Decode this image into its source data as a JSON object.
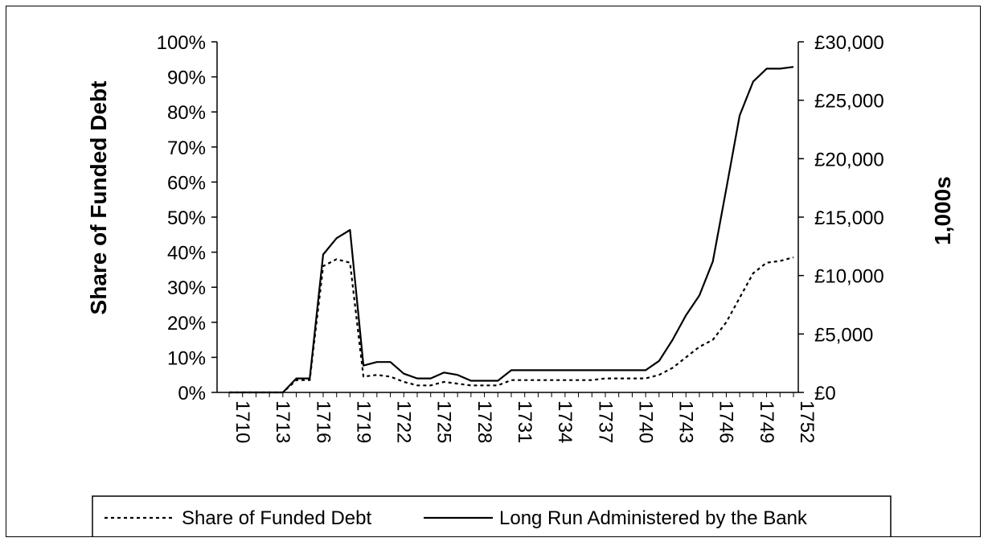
{
  "chart_data": {
    "type": "line",
    "title": "",
    "ylabel_left": "Share of Funded Debt",
    "ylabel_right": "1,000s",
    "xlabel": "",
    "x_tick_labels": [
      "1710",
      "1713",
      "1716",
      "1719",
      "1722",
      "1725",
      "1728",
      "1731",
      "1734",
      "1737",
      "1740",
      "1743",
      "1746",
      "1749",
      "1752"
    ],
    "y_left_tick_labels": [
      "0%",
      "10%",
      "20%",
      "30%",
      "40%",
      "50%",
      "60%",
      "70%",
      "80%",
      "90%",
      "100%"
    ],
    "y_right_tick_labels": [
      "£0",
      "£5,000",
      "£10,000",
      "£15,000",
      "£20,000",
      "£25,000",
      "£30,000"
    ],
    "ylim_left": [
      0,
      100
    ],
    "ylim_right": [
      0,
      30000
    ],
    "legend_position": "bottom",
    "x": [
      1710,
      1711,
      1712,
      1713,
      1714,
      1715,
      1716,
      1717,
      1718,
      1719,
      1720,
      1721,
      1722,
      1723,
      1724,
      1725,
      1726,
      1727,
      1728,
      1729,
      1730,
      1731,
      1732,
      1733,
      1734,
      1735,
      1736,
      1737,
      1738,
      1739,
      1740,
      1741,
      1742,
      1743,
      1744,
      1745,
      1746,
      1747,
      1748,
      1749,
      1750,
      1751,
      1752
    ],
    "series": [
      {
        "name": "Share of Funded Debt",
        "axis": "left",
        "style": "dotted",
        "values": [
          0,
          0,
          0,
          0,
          0,
          3.5,
          3.5,
          36,
          38,
          37,
          4.5,
          5,
          4.5,
          3,
          2,
          2,
          3,
          2.5,
          2,
          2,
          2,
          3.5,
          3.5,
          3.5,
          3.5,
          3.5,
          3.5,
          3.5,
          4,
          4,
          4,
          4,
          5,
          7,
          10,
          13,
          15,
          20,
          27,
          34,
          37,
          37.5,
          38.5
        ]
      },
      {
        "name": "Long Run Administered by the Bank",
        "axis": "right",
        "style": "solid",
        "values": [
          0,
          0,
          0,
          0,
          0,
          1200,
          1200,
          11800,
          13200,
          13900,
          2300,
          2600,
          2600,
          1600,
          1200,
          1200,
          1700,
          1500,
          1000,
          1000,
          1000,
          1900,
          1900,
          1900,
          1900,
          1900,
          1900,
          1900,
          1900,
          1900,
          1900,
          1900,
          2700,
          4500,
          6600,
          8300,
          11200,
          17400,
          23700,
          26600,
          27700,
          27700,
          27850
        ]
      }
    ]
  },
  "colors": {
    "line": "#000000",
    "background": "#ffffff"
  }
}
